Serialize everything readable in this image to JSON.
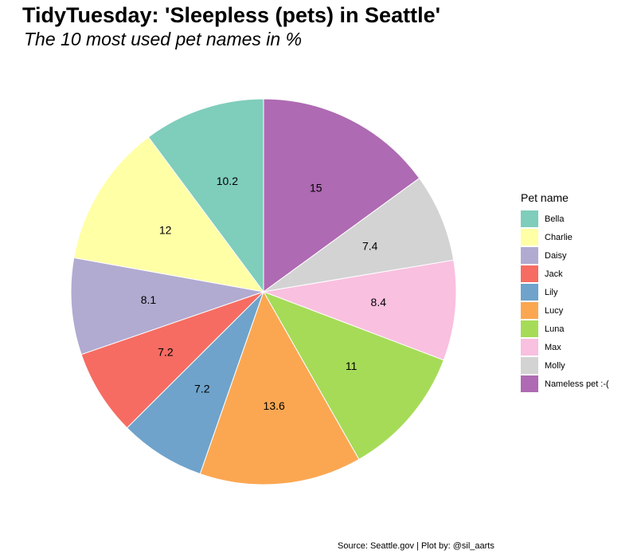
{
  "title": "TidyTuesday: 'Sleepless (pets) in Seattle'",
  "subtitle": "The 10 most used pet names in %",
  "caption": "Source: Seattle.gov | Plot by: @sil_aarts",
  "legend_title": "Pet name",
  "chart_data": {
    "type": "pie",
    "title": "TidyTuesday: 'Sleepless (pets) in Seattle'",
    "subtitle": "The 10 most used pet names in %",
    "legend_title": "Pet name",
    "legend_position": "right",
    "slices": [
      {
        "name": "Bella",
        "value": 10.2,
        "color": "#7FCDBB"
      },
      {
        "name": "Charlie",
        "value": 12,
        "color": "#FFFFA6"
      },
      {
        "name": "Daisy",
        "value": 8.1,
        "color": "#B1ABD1"
      },
      {
        "name": "Jack",
        "value": 7.2,
        "color": "#F66C62"
      },
      {
        "name": "Lily",
        "value": 7.2,
        "color": "#6FA3CB"
      },
      {
        "name": "Lucy",
        "value": 13.6,
        "color": "#FBA752"
      },
      {
        "name": "Luna",
        "value": 11,
        "color": "#A6DB58"
      },
      {
        "name": "Max",
        "value": 8.4,
        "color": "#F9C0DF"
      },
      {
        "name": "Molly",
        "value": 7.4,
        "color": "#D3D3D3"
      },
      {
        "name": "Nameless pet :-(",
        "value": 15,
        "color": "#AE6AB2"
      }
    ],
    "draw_order": [
      "Nameless pet :-(",
      "Molly",
      "Max",
      "Luna",
      "Lucy",
      "Lily",
      "Jack",
      "Daisy",
      "Charlie",
      "Bella"
    ]
  }
}
